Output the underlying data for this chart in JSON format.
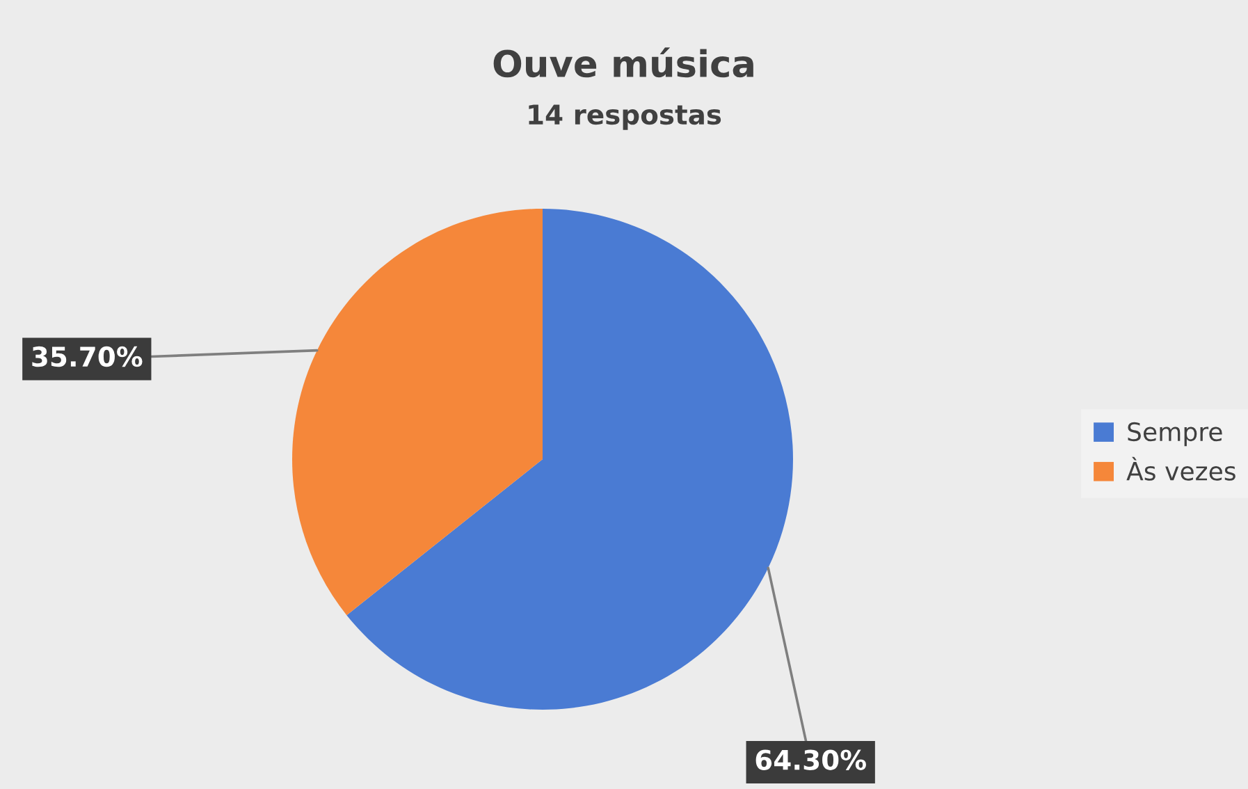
{
  "chart_data": {
    "type": "pie",
    "title": "Ouve música",
    "subtitle": "14 respostas",
    "categories": [
      "Sempre",
      "Às vezes"
    ],
    "values": [
      64.3,
      35.7
    ],
    "colors": [
      "#4a7bd3",
      "#f5873a"
    ],
    "value_labels": [
      "64.30%",
      "35.70%"
    ],
    "legend": "right"
  }
}
